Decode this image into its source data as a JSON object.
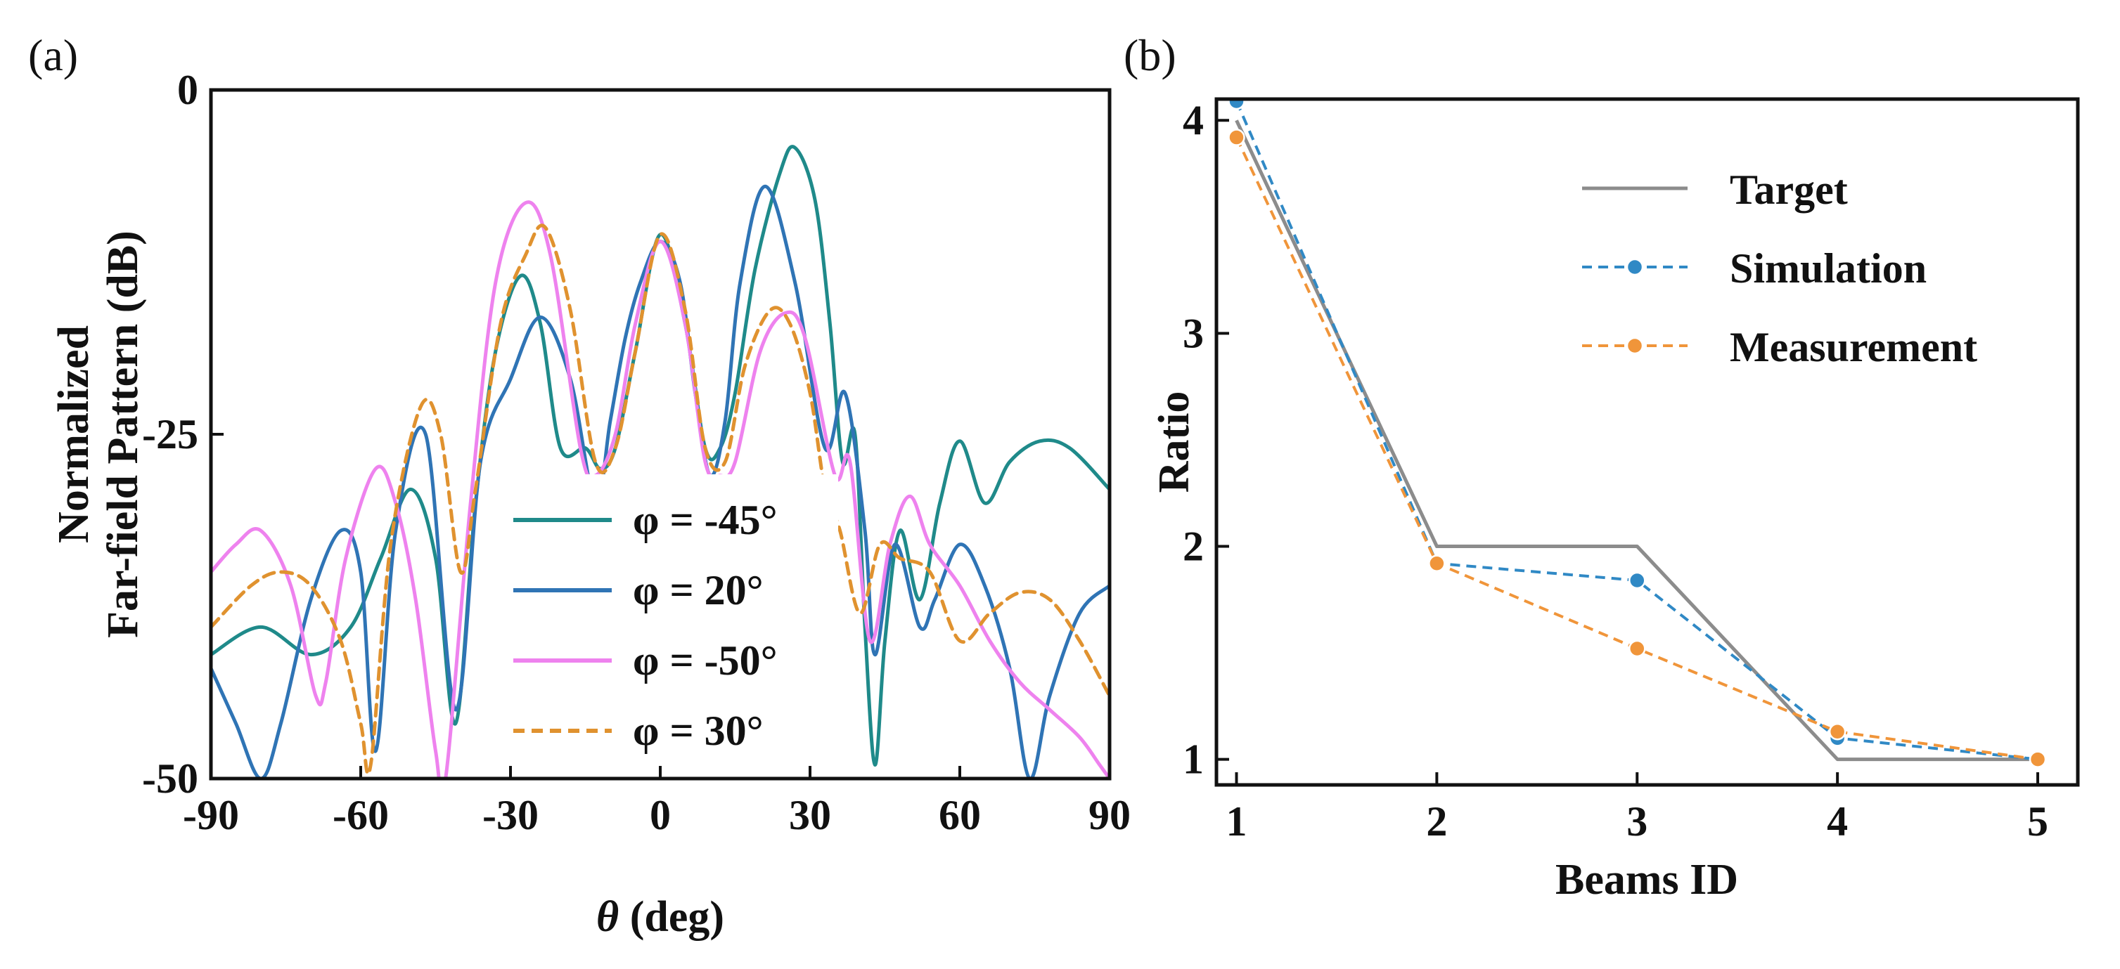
{
  "colors": {
    "teal": "#1f8a8a",
    "blue": "#2f74b5",
    "pink": "#ee82ee",
    "orange": "#e0922f",
    "target_gray": "#8c8c8c",
    "sim_blue": "#3089c5",
    "meas_orange": "#f0953a"
  },
  "chart_data": [
    {
      "panel_label": "(a)",
      "type": "line",
      "title": "",
      "xlabel_symbol": "θ",
      "xlabel_unit": "(deg)",
      "ylabel_line1": "Normalized",
      "ylabel_line2": "Far-field Pattern (dB)",
      "xlim": [
        -90,
        90
      ],
      "ylim": [
        -50,
        0
      ],
      "xticks": [
        -90,
        -60,
        -30,
        0,
        30,
        60,
        90
      ],
      "xtick_labels": [
        "-90",
        "-60",
        "-30",
        "0",
        "30",
        "60",
        "90"
      ],
      "yticks": [
        -50,
        -25,
        0
      ],
      "ytick_labels": [
        "-50",
        "-25",
        "0"
      ],
      "legend_position": "lower-center",
      "series": [
        {
          "name": "φ = -45°",
          "color_key": "teal",
          "dash": false,
          "x": [
            -90,
            -80,
            -70,
            -62,
            -56,
            -50,
            -45,
            -41,
            -37,
            -33,
            -28,
            -24,
            -20,
            -15,
            -12,
            -9,
            -5,
            0,
            5,
            9,
            12,
            15,
            19,
            24,
            27,
            31,
            34,
            36.5,
            39,
            41,
            43,
            45,
            48,
            52,
            56,
            60,
            65,
            70,
            76,
            82,
            90
          ],
          "y": [
            -41,
            -39,
            -41,
            -39,
            -34,
            -29,
            -34,
            -46,
            -30,
            -19,
            -13.5,
            -17,
            -26,
            -26,
            -27.5,
            -26,
            -19,
            -10.5,
            -17,
            -26,
            -26,
            -22,
            -13,
            -6,
            -4.2,
            -8,
            -17,
            -27,
            -25,
            -39,
            -49,
            -40,
            -32,
            -37,
            -30,
            -25.5,
            -30,
            -27,
            -25.5,
            -26,
            -29
          ]
        },
        {
          "name": "φ = 20°",
          "color_key": "blue",
          "dash": false,
          "x": [
            -90,
            -85,
            -80,
            -76,
            -70,
            -64,
            -60,
            -57,
            -53,
            -47,
            -41,
            -36,
            -30,
            -24,
            -18,
            -13,
            -10,
            -7,
            -4,
            0,
            4,
            7,
            10,
            13,
            16,
            21,
            27,
            33,
            37,
            41,
            43,
            47,
            52,
            55,
            60,
            65,
            70,
            74,
            78,
            84,
            90
          ],
          "y": [
            -42,
            -46,
            -50,
            -46,
            -37,
            -32,
            -35,
            -48,
            -32,
            -25,
            -45,
            -27,
            -21,
            -16.5,
            -21,
            -30,
            -24,
            -18,
            -14,
            -11,
            -14,
            -22,
            -28,
            -24,
            -14,
            -7,
            -14,
            -26,
            -22,
            -32,
            -41,
            -33,
            -39,
            -37,
            -33,
            -36,
            -42,
            -50,
            -44,
            -38,
            -36
          ]
        },
        {
          "name": "φ = -50°",
          "color_key": "pink",
          "dash": false,
          "x": [
            -90,
            -85,
            -80,
            -74,
            -69,
            -67,
            -63,
            -57,
            -53,
            -49,
            -45,
            -43,
            -38,
            -33,
            -27,
            -22,
            -16,
            -13,
            -9,
            -5,
            0,
            5,
            9,
            12,
            15,
            20,
            25,
            29,
            35,
            38,
            42,
            46,
            50,
            54,
            60,
            66,
            72,
            78,
            84,
            88,
            90
          ],
          "y": [
            -35,
            -33,
            -32,
            -36,
            -44,
            -43,
            -34,
            -27.5,
            -30,
            -37,
            -48,
            -50,
            -30,
            -14,
            -8.2,
            -12,
            -26,
            -28,
            -25,
            -17,
            -11,
            -17,
            -27,
            -28,
            -27,
            -19,
            -16.2,
            -18,
            -28,
            -27,
            -40,
            -33,
            -29.5,
            -33,
            -36,
            -40,
            -43,
            -45,
            -47,
            -49,
            -50
          ]
        },
        {
          "name": "φ = 30°",
          "color_key": "orange",
          "dash": true,
          "x": [
            -90,
            -82,
            -76,
            -70,
            -64,
            -60,
            -58,
            -54,
            -48,
            -44,
            -40,
            -37,
            -32,
            -27,
            -23,
            -18,
            -13,
            -9,
            -5,
            0,
            5,
            9,
            13,
            17,
            22,
            26,
            30,
            33,
            36,
            40,
            44,
            48,
            54,
            60,
            66,
            72,
            78,
            84,
            90
          ],
          "y": [
            -39,
            -36,
            -35,
            -36,
            -40,
            -46,
            -49,
            -33,
            -23,
            -25,
            -35,
            -29,
            -17,
            -12,
            -10,
            -16,
            -27,
            -26,
            -19,
            -10.5,
            -16,
            -26,
            -27,
            -20,
            -16,
            -17,
            -22,
            -29,
            -32,
            -38,
            -33,
            -34,
            -35,
            -40,
            -38,
            -36.5,
            -37,
            -40,
            -44
          ]
        }
      ]
    },
    {
      "panel_label": "(b)",
      "type": "line",
      "title": "",
      "xlabel": "Beams ID",
      "ylabel": "Ratio",
      "xlim": [
        0.9,
        5.2
      ],
      "ylim": [
        0.88,
        4.1
      ],
      "xticks": [
        1,
        2,
        3,
        4,
        5
      ],
      "xtick_labels": [
        "1",
        "2",
        "3",
        "4",
        "5"
      ],
      "yticks": [
        1,
        2,
        3,
        4
      ],
      "ytick_labels": [
        "1",
        "2",
        "3",
        "4"
      ],
      "legend_position": "top-right",
      "categories": [
        1,
        2,
        3,
        4,
        5
      ],
      "series": [
        {
          "name": "Target",
          "color_key": "target_gray",
          "style": "solid",
          "markers": false,
          "values": [
            4.0,
            2.0,
            2.0,
            1.0,
            1.0
          ]
        },
        {
          "name": "Simulation",
          "color_key": "sim_blue",
          "style": "dashed",
          "markers": true,
          "values": [
            4.09,
            1.92,
            1.84,
            1.1,
            1.0
          ]
        },
        {
          "name": "Measurement",
          "color_key": "meas_orange",
          "style": "dashed",
          "markers": true,
          "values": [
            3.92,
            1.92,
            1.52,
            1.13,
            1.0
          ]
        }
      ]
    }
  ]
}
